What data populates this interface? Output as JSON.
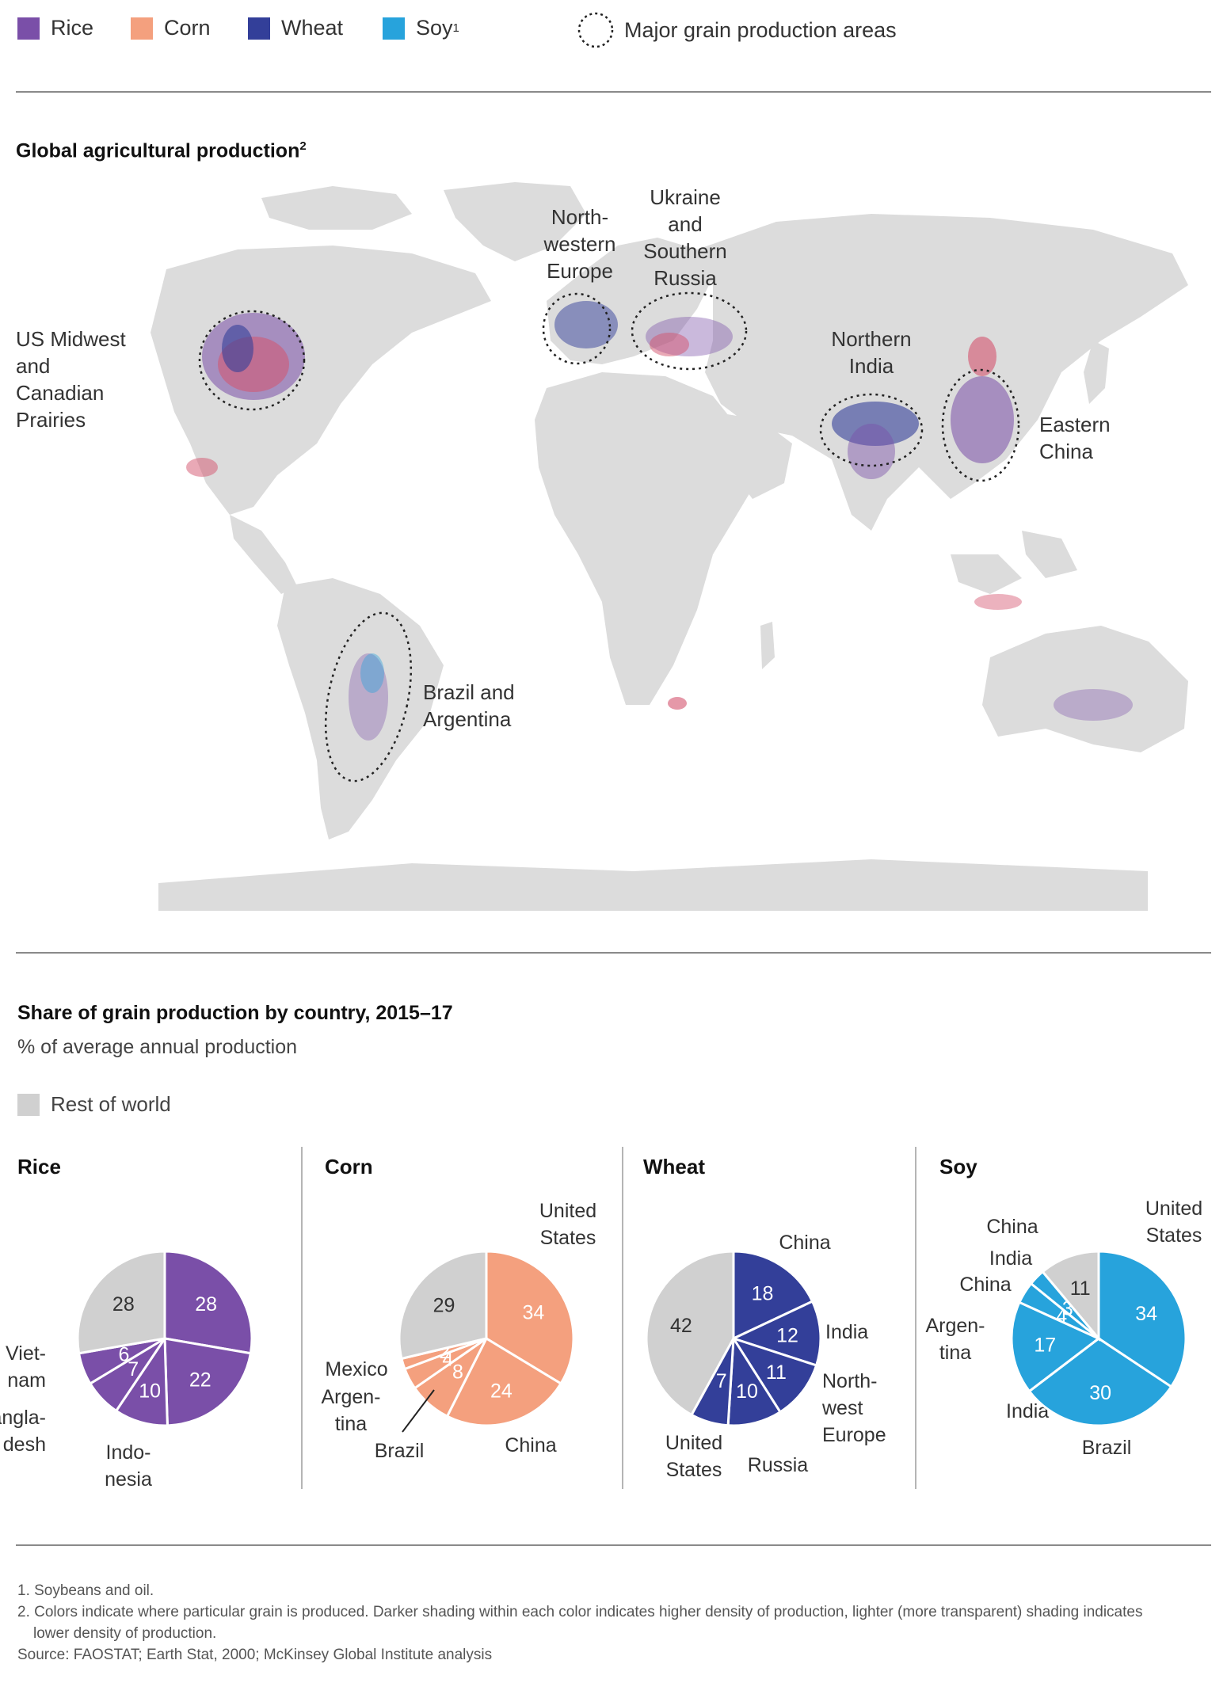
{
  "legend": {
    "items": [
      {
        "label": "Rice",
        "color": "#7a4fa8"
      },
      {
        "label": "Corn",
        "color": "#f4a07e"
      },
      {
        "label": "Wheat",
        "color": "#333f99"
      },
      {
        "label": "Soy",
        "sup": "1",
        "color": "#27a3dc"
      }
    ],
    "areas_label": "Major grain production areas"
  },
  "map": {
    "title": "Global agricultural production",
    "title_sup": "2",
    "labels": {
      "us": "US Midwest\nand\nCanadian\nPrairies",
      "nw_europe": "North-\nwestern\nEurope",
      "ukraine": "Ukraine\nand\nSouthern\nRussia",
      "india": "Northern\nIndia",
      "china": "Eastern\nChina",
      "brazil": "Brazil and\nArgentina"
    }
  },
  "shares": {
    "title": "Share of grain production by country, 2015–17",
    "subtitle": "% of average annual production",
    "rest_label": "Rest of world",
    "rest_color": "#d0d0d0"
  },
  "chart_data": [
    {
      "type": "pie",
      "title": "Rice",
      "color": "#7a4fa8",
      "slices": [
        {
          "label": "China",
          "value": 28
        },
        {
          "label": "India",
          "value": 22
        },
        {
          "label": "Indonesia",
          "value": 10
        },
        {
          "label": "Bangladesh",
          "value": 7
        },
        {
          "label": "Vietnam",
          "value": 6
        },
        {
          "label": "Rest of world",
          "value": 28
        }
      ]
    },
    {
      "type": "pie",
      "title": "Corn",
      "color": "#f4a07e",
      "slices": [
        {
          "label": "United States",
          "value": 34
        },
        {
          "label": "China",
          "value": 24
        },
        {
          "label": "Brazil",
          "value": 8
        },
        {
          "label": "Argentina",
          "value": 4
        },
        {
          "label": "Mexico",
          "value": 2
        },
        {
          "label": "Rest of world",
          "value": 29
        }
      ]
    },
    {
      "type": "pie",
      "title": "Wheat",
      "color": "#333f99",
      "slices": [
        {
          "label": "China",
          "value": 18
        },
        {
          "label": "India",
          "value": 12
        },
        {
          "label": "Northwest Europe",
          "value": 11
        },
        {
          "label": "Russia",
          "value": 10
        },
        {
          "label": "United States",
          "value": 7
        },
        {
          "label": "Rest of world",
          "value": 42
        }
      ]
    },
    {
      "type": "pie",
      "title": "Soy",
      "color": "#27a3dc",
      "slices": [
        {
          "label": "United States",
          "value": 34
        },
        {
          "label": "Brazil",
          "value": 30
        },
        {
          "label": "Argentina",
          "value": 17
        },
        {
          "label": "China",
          "value": 4
        },
        {
          "label": "India",
          "value": 3
        },
        {
          "label": "Rest of world",
          "value": 11
        }
      ]
    }
  ],
  "pie_labels": {
    "rice": [
      "China",
      "India",
      "Indo-\nnesia",
      "Bangla-\ndesh",
      "Viet-\nnam"
    ],
    "corn": [
      "United\nStates",
      "China",
      "Brazil",
      "Argen-\ntina",
      "Mexico"
    ],
    "wheat": [
      "China",
      "India",
      "North-\nwest\nEurope",
      "Russia",
      "United\nStates"
    ],
    "soy": [
      "United\nStates",
      "Brazil",
      "Argen-\ntina",
      "China",
      "India"
    ]
  },
  "footnotes": {
    "n1": "1.  Soybeans and oil.",
    "n2": "2. Colors indicate where particular grain is produced. Darker shading within each color indicates higher density of production, lighter (more transparent) shading indicates lower density of production.",
    "source": "Source: FAOSTAT; Earth Stat, 2000; McKinsey Global Institute analysis"
  }
}
